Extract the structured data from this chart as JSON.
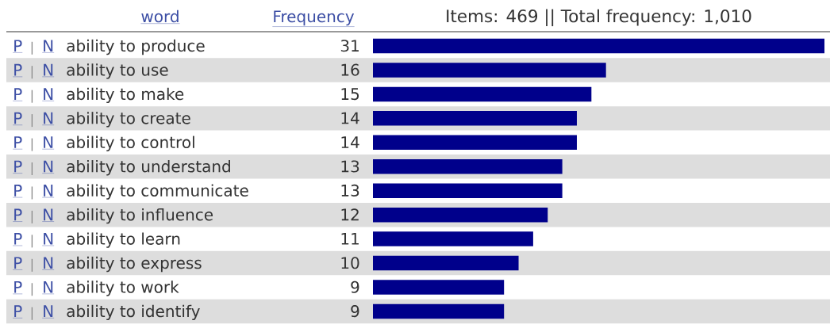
{
  "chart_data": {
    "type": "bar",
    "orientation": "horizontal",
    "title": "Items: 469 || Total frequency: 1,010",
    "xlabel": "Frequency",
    "ylabel": "word",
    "categories": [
      "ability to produce",
      "ability to use",
      "ability to make",
      "ability to create",
      "ability to control",
      "ability to understand",
      "ability to communicate",
      "ability to influence",
      "ability to learn",
      "ability to express",
      "ability to work",
      "ability to identify"
    ],
    "values": [
      31,
      16,
      15,
      14,
      14,
      13,
      13,
      12,
      11,
      10,
      9,
      9
    ],
    "color": "#00008b",
    "xlim": [
      0,
      31
    ],
    "data_labels": true,
    "tick_labels": "y",
    "annotations": [
      "P",
      "|",
      "N"
    ]
  }
}
